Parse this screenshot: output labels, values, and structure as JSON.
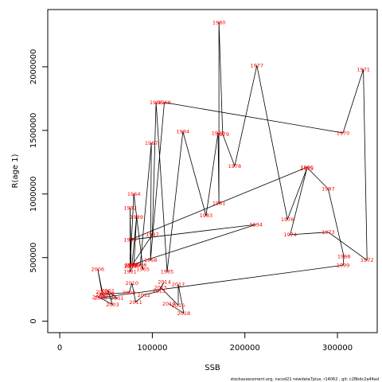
{
  "chart_data": {
    "type": "line",
    "xlabel": "SSB",
    "ylabel": "R(age 1)",
    "xlim": [
      -13000,
      343000
    ],
    "ylim": [
      -90000,
      2450000
    ],
    "x_ticks": [
      0,
      100000,
      200000,
      300000
    ],
    "x_tick_labels": [
      "0",
      "100000",
      "200000",
      "300000"
    ],
    "y_ticks": [
      0,
      500000,
      1000000,
      1500000,
      2000000
    ],
    "y_tick_labels": [
      "0",
      "500000",
      "1000000",
      "1500000",
      "2000000"
    ],
    "grid": false,
    "footer": "stockassessment.org, nscod21 newdata7plus, r14062 , git: c28bdc2a44ad",
    "points": [
      {
        "year": "1963",
        "x": 76000,
        "y": 432000
      },
      {
        "year": "1964",
        "x": 80000,
        "y": 1000000
      },
      {
        "year": "1965",
        "x": 90000,
        "y": 408000
      },
      {
        "year": "1966",
        "x": 87000,
        "y": 444000
      },
      {
        "year": "1967",
        "x": 99000,
        "y": 1400000
      },
      {
        "year": "1968",
        "x": 98000,
        "y": 480000
      },
      {
        "year": "1969",
        "x": 113000,
        "y": 1720000
      },
      {
        "year": "1970",
        "x": 306000,
        "y": 1480000
      },
      {
        "year": "1971",
        "x": 328000,
        "y": 1980000
      },
      {
        "year": "1972",
        "x": 332000,
        "y": 480000
      },
      {
        "year": "1973",
        "x": 290000,
        "y": 700000
      },
      {
        "year": "1974",
        "x": 249000,
        "y": 680000
      },
      {
        "year": "1975",
        "x": 267000,
        "y": 1200000
      },
      {
        "year": "1976",
        "x": 246000,
        "y": 800000
      },
      {
        "year": "1977",
        "x": 213000,
        "y": 2010000
      },
      {
        "year": "1978",
        "x": 189000,
        "y": 1220000
      },
      {
        "year": "1979",
        "x": 176000,
        "y": 1470000
      },
      {
        "year": "1980",
        "x": 172000,
        "y": 2350000
      },
      {
        "year": "1981",
        "x": 172000,
        "y": 930000
      },
      {
        "year": "1982",
        "x": 171000,
        "y": 1480000
      },
      {
        "year": "1983",
        "x": 158000,
        "y": 830000
      },
      {
        "year": "1984",
        "x": 133000,
        "y": 1490000
      },
      {
        "year": "1985",
        "x": 116000,
        "y": 390000
      },
      {
        "year": "1986",
        "x": 104000,
        "y": 1720000
      },
      {
        "year": "1987",
        "x": 100000,
        "y": 680000
      },
      {
        "year": "1988",
        "x": 78000,
        "y": 440000
      },
      {
        "year": "1989",
        "x": 83000,
        "y": 820000
      },
      {
        "year": "1990",
        "x": 80000,
        "y": 440000
      },
      {
        "year": "1991",
        "x": 76000,
        "y": 390000
      },
      {
        "year": "1992",
        "x": 76000,
        "y": 890000
      },
      {
        "year": "1993",
        "x": 77000,
        "y": 442000
      },
      {
        "year": "1994",
        "x": 212000,
        "y": 760000
      },
      {
        "year": "1995",
        "x": 76000,
        "y": 640000
      },
      {
        "year": "1996",
        "x": 267000,
        "y": 1210000
      },
      {
        "year": "1997",
        "x": 290000,
        "y": 1040000
      },
      {
        "year": "1998",
        "x": 307000,
        "y": 510000
      },
      {
        "year": "1999",
        "x": 306000,
        "y": 440000
      },
      {
        "year": "2000",
        "x": 44000,
        "y": 185000
      },
      {
        "year": "2001",
        "x": 62000,
        "y": 180000
      },
      {
        "year": "2002",
        "x": 52000,
        "y": 240000
      },
      {
        "year": "2003",
        "x": 57000,
        "y": 130000
      },
      {
        "year": "2004",
        "x": 42000,
        "y": 190000
      },
      {
        "year": "2005",
        "x": 46000,
        "y": 230000
      },
      {
        "year": "2006",
        "x": 41000,
        "y": 410000
      },
      {
        "year": "2007",
        "x": 46000,
        "y": 208000
      },
      {
        "year": "2008",
        "x": 52000,
        "y": 214000
      },
      {
        "year": "2009",
        "x": 75000,
        "y": 226000
      },
      {
        "year": "2010",
        "x": 78000,
        "y": 300000
      },
      {
        "year": "2011",
        "x": 82000,
        "y": 150000
      },
      {
        "year": "2012",
        "x": 91000,
        "y": 205000
      },
      {
        "year": "2013",
        "x": 107000,
        "y": 236000
      },
      {
        "year": "2014",
        "x": 113000,
        "y": 310000
      },
      {
        "year": "2015",
        "x": 109000,
        "y": 265000
      },
      {
        "year": "2016",
        "x": 128000,
        "y": 125000
      },
      {
        "year": "2017",
        "x": 128000,
        "y": 290000
      },
      {
        "year": "2018",
        "x": 134000,
        "y": 62000
      },
      {
        "year": "2019",
        "x": 118000,
        "y": 138000
      }
    ]
  }
}
